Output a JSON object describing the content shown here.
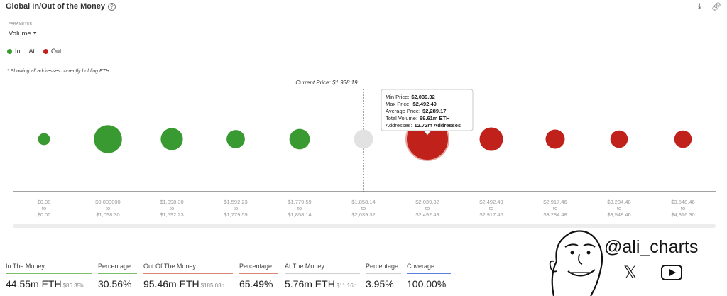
{
  "header": {
    "title": "Global In/Out of the Money",
    "help_icon": "help-circle-icon",
    "download_icon": "download-icon",
    "link_icon": "link-icon"
  },
  "parameter": {
    "label": "PARAMETER",
    "value": "Volume"
  },
  "legend": {
    "in_label": "In",
    "at_label": "At",
    "out_label": "Out"
  },
  "note": "* Showing all addresses currently holding ETH",
  "current_price_label": "Current Price: $1,938.19",
  "tooltip": {
    "min_label": "Min Price:",
    "min_value": "$2,039.32",
    "max_label": "Max Price:",
    "max_value": "$2,492.49",
    "avg_label": "Average Price:",
    "avg_value": "$2,289.17",
    "vol_label": "Total Volume:",
    "vol_value": "69.61m ETH",
    "addr_label": "Addresses:",
    "addr_value": "12.72m Addresses"
  },
  "colors": {
    "in": "#3a9a32",
    "at": "#e2e2e2",
    "out": "#c0211b",
    "in_bar": "#7bbf6a",
    "out_bar": "#d98878",
    "at_bar": "#cfcfcf",
    "coverage_bar": "#5b7fdc"
  },
  "chart_data": {
    "type": "scatter",
    "title": "",
    "xlabel": "",
    "ylabel": "",
    "current_price": 1938.19,
    "highlighted_index": 6,
    "buckets": [
      {
        "from": "$0.00",
        "to": "$0.00",
        "status": "in",
        "relative_size": 0.28
      },
      {
        "from": "$0.000000",
        "to": "$1,098.30",
        "status": "in",
        "relative_size": 0.66
      },
      {
        "from": "$1,098.30",
        "to": "$1,592.23",
        "status": "in",
        "relative_size": 0.52
      },
      {
        "from": "$1,592.23",
        "to": "$1,779.59",
        "status": "in",
        "relative_size": 0.43
      },
      {
        "from": "$1,779.59",
        "to": "$1,858.14",
        "status": "in",
        "relative_size": 0.48
      },
      {
        "from": "$1,858.14",
        "to": "$2,039.32",
        "status": "at",
        "relative_size": 0.45
      },
      {
        "from": "$2,039.32",
        "to": "$2,492.49",
        "status": "out",
        "relative_size": 1.0
      },
      {
        "from": "$2,492.49",
        "to": "$2,917.46",
        "status": "out",
        "relative_size": 0.55
      },
      {
        "from": "$2,917.46",
        "to": "$3,284.48",
        "status": "out",
        "relative_size": 0.45
      },
      {
        "from": "$3,284.48",
        "to": "$3,548.46",
        "status": "out",
        "relative_size": 0.41
      },
      {
        "from": "$3,548.46",
        "to": "$4,816.30",
        "status": "out",
        "relative_size": 0.41
      }
    ],
    "range_connector": "to"
  },
  "stats": [
    {
      "label": "In The Money",
      "value": "44.55m ETH",
      "sub": "$86.35b",
      "bar_color": "#7bbf6a"
    },
    {
      "label": "Percentage",
      "value": "30.56%",
      "sub": "",
      "bar_color": "#7bbf6a"
    },
    {
      "label": "Out Of The Money",
      "value": "95.46m ETH",
      "sub": "$185.03b",
      "bar_color": "#d98878"
    },
    {
      "label": "Percentage",
      "value": "65.49%",
      "sub": "",
      "bar_color": "#d98878"
    },
    {
      "label": "At The Money",
      "value": "5.76m ETH",
      "sub": "$11.16b",
      "bar_color": "#cfcfcf"
    },
    {
      "label": "Percentage",
      "value": "3.95%",
      "sub": "",
      "bar_color": "#cfcfcf"
    },
    {
      "label": "Coverage",
      "value": "100.00%",
      "sub": "",
      "bar_color": "#5b7fdc"
    }
  ],
  "watermark": {
    "handle": "@ali_charts",
    "x_icon": "x-logo-icon",
    "youtube_icon": "youtube-icon",
    "avatar": "cartoon-avatar-icon"
  }
}
